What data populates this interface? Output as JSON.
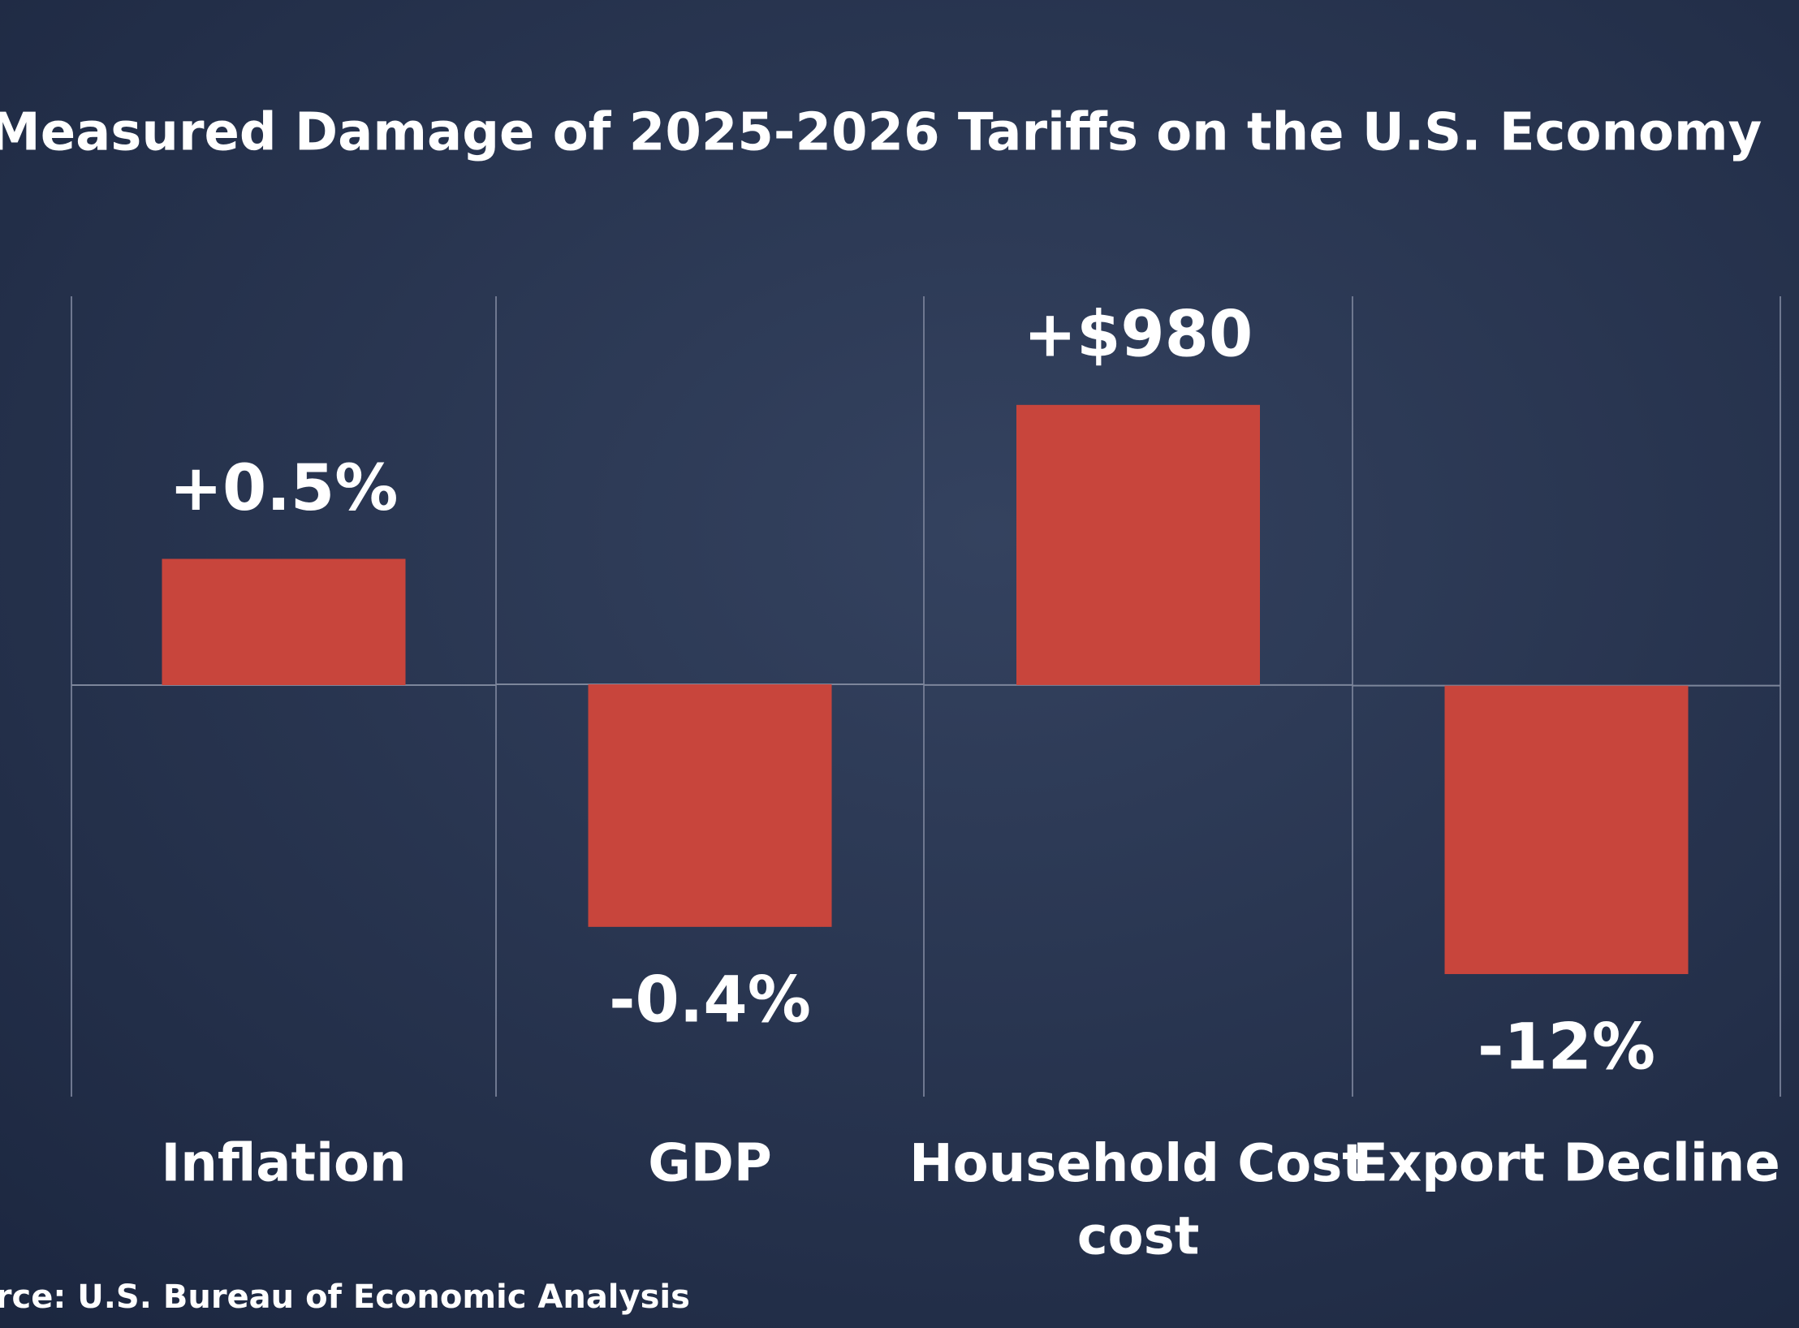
{
  "title": "Measured Damage of 2025-2026 Tariffs on the U.S. Economy",
  "source": "Source: U.S. Bureau of Economic Analysis",
  "chart_data": [
    {
      "type": "bar",
      "categories": [
        "Inflation"
      ],
      "values": [
        0.5
      ],
      "value_labels": [
        "+0.5%"
      ],
      "color": "#c8453c",
      "ylim": [
        -1.63,
        1.54
      ]
    },
    {
      "type": "bar",
      "categories": [
        "GDP"
      ],
      "values": [
        -0.4
      ],
      "value_labels": [
        "-0.4%"
      ],
      "color": "#c8453c",
      "ylim": [
        -0.68,
        0.64
      ]
    },
    {
      "type": "bar",
      "categories": [
        "Household Cost\ncost"
      ],
      "values": [
        980
      ],
      "value_labels": [
        "+$980"
      ],
      "color": "#c8453c",
      "ylim": [
        -1440,
        1360
      ]
    },
    {
      "type": "bar",
      "categories": [
        "Export Decline"
      ],
      "values": [
        -12
      ],
      "value_labels": [
        "-12%"
      ],
      "color": "#c8453c",
      "ylim": [
        -17.1,
        16.2
      ]
    }
  ]
}
